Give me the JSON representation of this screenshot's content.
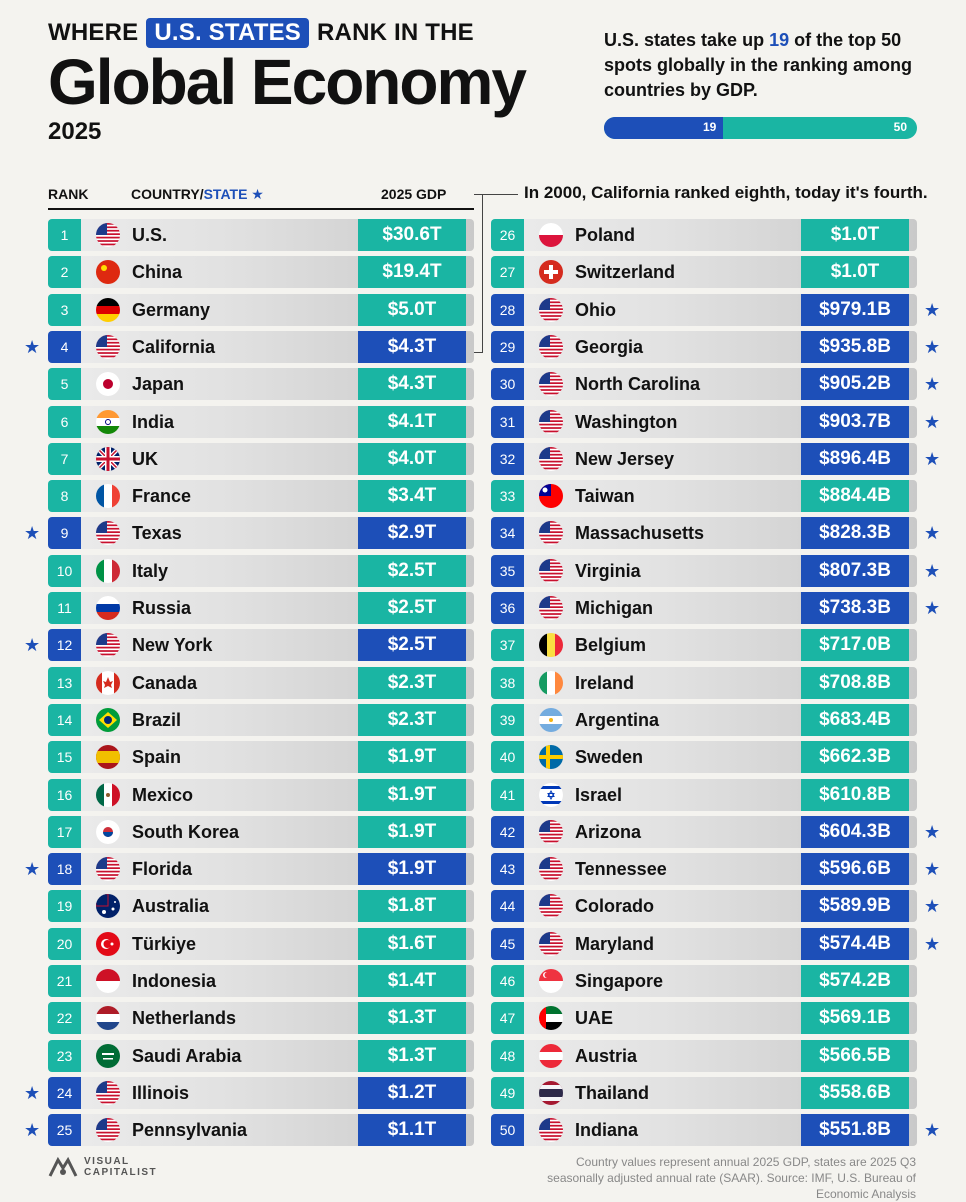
{
  "header": {
    "kicker_before": "WHERE",
    "kicker_highlight": "U.S. STATES",
    "kicker_after": "RANK IN THE",
    "title": "Global Economy",
    "year": "2025"
  },
  "stat": {
    "text_before": "U.S. states take up",
    "count": "19",
    "text_after": "of the top 50 spots globally in the ranking among countries by GDP.",
    "progress_value": 19,
    "progress_max": 50,
    "progress_label_value": "19",
    "progress_label_max": "50"
  },
  "columns": {
    "rank": "RANK",
    "country": "COUNTRY/",
    "state": "STATE",
    "star": "★",
    "gdp": "2025 GDP"
  },
  "callout": "In 2000, California ranked eighth, today it's fourth.",
  "footer": {
    "logo_line1": "VISUAL",
    "logo_line2": "CAPITALIST",
    "note": "Country values represent annual 2025 GDP, states are 2025 Q3 seasonally adjusted annual rate (SAAR). Source: IMF, U.S. Bureau of Economic Analysis"
  },
  "colors": {
    "country": "#1ab5a3",
    "state": "#1d4fb8"
  },
  "chart_data": {
    "type": "table",
    "title": "Global Economy",
    "columns": [
      "RANK",
      "COUNTRY/STATE",
      "2025 GDP"
    ],
    "rows": [
      {
        "rank": 1,
        "name": "U.S.",
        "gdp": "$30.6T",
        "value_b": 30600,
        "state": false,
        "flag": "us"
      },
      {
        "rank": 2,
        "name": "China",
        "gdp": "$19.4T",
        "value_b": 19400,
        "state": false,
        "flag": "cn"
      },
      {
        "rank": 3,
        "name": "Germany",
        "gdp": "$5.0T",
        "value_b": 5000,
        "state": false,
        "flag": "de"
      },
      {
        "rank": 4,
        "name": "California",
        "gdp": "$4.3T",
        "value_b": 4300,
        "state": true,
        "flag": "us"
      },
      {
        "rank": 5,
        "name": "Japan",
        "gdp": "$4.3T",
        "value_b": 4300,
        "state": false,
        "flag": "jp"
      },
      {
        "rank": 6,
        "name": "India",
        "gdp": "$4.1T",
        "value_b": 4100,
        "state": false,
        "flag": "in"
      },
      {
        "rank": 7,
        "name": "UK",
        "gdp": "$4.0T",
        "value_b": 4000,
        "state": false,
        "flag": "gb"
      },
      {
        "rank": 8,
        "name": "France",
        "gdp": "$3.4T",
        "value_b": 3400,
        "state": false,
        "flag": "fr"
      },
      {
        "rank": 9,
        "name": "Texas",
        "gdp": "$2.9T",
        "value_b": 2900,
        "state": true,
        "flag": "us"
      },
      {
        "rank": 10,
        "name": "Italy",
        "gdp": "$2.5T",
        "value_b": 2500,
        "state": false,
        "flag": "it"
      },
      {
        "rank": 11,
        "name": "Russia",
        "gdp": "$2.5T",
        "value_b": 2500,
        "state": false,
        "flag": "ru"
      },
      {
        "rank": 12,
        "name": "New York",
        "gdp": "$2.5T",
        "value_b": 2500,
        "state": true,
        "flag": "us"
      },
      {
        "rank": 13,
        "name": "Canada",
        "gdp": "$2.3T",
        "value_b": 2300,
        "state": false,
        "flag": "ca"
      },
      {
        "rank": 14,
        "name": "Brazil",
        "gdp": "$2.3T",
        "value_b": 2300,
        "state": false,
        "flag": "br"
      },
      {
        "rank": 15,
        "name": "Spain",
        "gdp": "$1.9T",
        "value_b": 1900,
        "state": false,
        "flag": "es"
      },
      {
        "rank": 16,
        "name": "Mexico",
        "gdp": "$1.9T",
        "value_b": 1900,
        "state": false,
        "flag": "mx"
      },
      {
        "rank": 17,
        "name": "South Korea",
        "gdp": "$1.9T",
        "value_b": 1900,
        "state": false,
        "flag": "kr"
      },
      {
        "rank": 18,
        "name": "Florida",
        "gdp": "$1.9T",
        "value_b": 1900,
        "state": true,
        "flag": "us"
      },
      {
        "rank": 19,
        "name": "Australia",
        "gdp": "$1.8T",
        "value_b": 1800,
        "state": false,
        "flag": "au"
      },
      {
        "rank": 20,
        "name": "Türkiye",
        "gdp": "$1.6T",
        "value_b": 1600,
        "state": false,
        "flag": "tr"
      },
      {
        "rank": 21,
        "name": "Indonesia",
        "gdp": "$1.4T",
        "value_b": 1400,
        "state": false,
        "flag": "id"
      },
      {
        "rank": 22,
        "name": "Netherlands",
        "gdp": "$1.3T",
        "value_b": 1300,
        "state": false,
        "flag": "nl"
      },
      {
        "rank": 23,
        "name": "Saudi Arabia",
        "gdp": "$1.3T",
        "value_b": 1300,
        "state": false,
        "flag": "sa"
      },
      {
        "rank": 24,
        "name": "Illinois",
        "gdp": "$1.2T",
        "value_b": 1200,
        "state": true,
        "flag": "us"
      },
      {
        "rank": 25,
        "name": "Pennsylvania",
        "gdp": "$1.1T",
        "value_b": 1100,
        "state": true,
        "flag": "us"
      },
      {
        "rank": 26,
        "name": "Poland",
        "gdp": "$1.0T",
        "value_b": 1000,
        "state": false,
        "flag": "pl"
      },
      {
        "rank": 27,
        "name": "Switzerland",
        "gdp": "$1.0T",
        "value_b": 1000,
        "state": false,
        "flag": "ch"
      },
      {
        "rank": 28,
        "name": "Ohio",
        "gdp": "$979.1B",
        "value_b": 979.1,
        "state": true,
        "flag": "us"
      },
      {
        "rank": 29,
        "name": "Georgia",
        "gdp": "$935.8B",
        "value_b": 935.8,
        "state": true,
        "flag": "us"
      },
      {
        "rank": 30,
        "name": "North Carolina",
        "gdp": "$905.2B",
        "value_b": 905.2,
        "state": true,
        "flag": "us"
      },
      {
        "rank": 31,
        "name": "Washington",
        "gdp": "$903.7B",
        "value_b": 903.7,
        "state": true,
        "flag": "us"
      },
      {
        "rank": 32,
        "name": "New Jersey",
        "gdp": "$896.4B",
        "value_b": 896.4,
        "state": true,
        "flag": "us"
      },
      {
        "rank": 33,
        "name": "Taiwan",
        "gdp": "$884.4B",
        "value_b": 884.4,
        "state": false,
        "flag": "tw"
      },
      {
        "rank": 34,
        "name": "Massachusetts",
        "gdp": "$828.3B",
        "value_b": 828.3,
        "state": true,
        "flag": "us"
      },
      {
        "rank": 35,
        "name": "Virginia",
        "gdp": "$807.3B",
        "value_b": 807.3,
        "state": true,
        "flag": "us"
      },
      {
        "rank": 36,
        "name": "Michigan",
        "gdp": "$738.3B",
        "value_b": 738.3,
        "state": true,
        "flag": "us"
      },
      {
        "rank": 37,
        "name": "Belgium",
        "gdp": "$717.0B",
        "value_b": 717.0,
        "state": false,
        "flag": "be"
      },
      {
        "rank": 38,
        "name": "Ireland",
        "gdp": "$708.8B",
        "value_b": 708.8,
        "state": false,
        "flag": "ie"
      },
      {
        "rank": 39,
        "name": "Argentina",
        "gdp": "$683.4B",
        "value_b": 683.4,
        "state": false,
        "flag": "ar"
      },
      {
        "rank": 40,
        "name": "Sweden",
        "gdp": "$662.3B",
        "value_b": 662.3,
        "state": false,
        "flag": "se"
      },
      {
        "rank": 41,
        "name": "Israel",
        "gdp": "$610.8B",
        "value_b": 610.8,
        "state": false,
        "flag": "il"
      },
      {
        "rank": 42,
        "name": "Arizona",
        "gdp": "$604.3B",
        "value_b": 604.3,
        "state": true,
        "flag": "us"
      },
      {
        "rank": 43,
        "name": "Tennessee",
        "gdp": "$596.6B",
        "value_b": 596.6,
        "state": true,
        "flag": "us"
      },
      {
        "rank": 44,
        "name": "Colorado",
        "gdp": "$589.9B",
        "value_b": 589.9,
        "state": true,
        "flag": "us"
      },
      {
        "rank": 45,
        "name": "Maryland",
        "gdp": "$574.4B",
        "value_b": 574.4,
        "state": true,
        "flag": "us"
      },
      {
        "rank": 46,
        "name": "Singapore",
        "gdp": "$574.2B",
        "value_b": 574.2,
        "state": false,
        "flag": "sg"
      },
      {
        "rank": 47,
        "name": "UAE",
        "gdp": "$569.1B",
        "value_b": 569.1,
        "state": false,
        "flag": "ae"
      },
      {
        "rank": 48,
        "name": "Austria",
        "gdp": "$566.5B",
        "value_b": 566.5,
        "state": false,
        "flag": "at"
      },
      {
        "rank": 49,
        "name": "Thailand",
        "gdp": "$558.6B",
        "value_b": 558.6,
        "state": false,
        "flag": "th"
      },
      {
        "rank": 50,
        "name": "Indiana",
        "gdp": "$551.8B",
        "value_b": 551.8,
        "state": true,
        "flag": "us"
      }
    ]
  }
}
